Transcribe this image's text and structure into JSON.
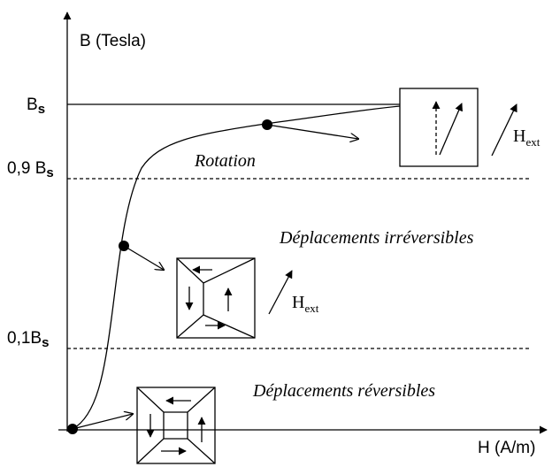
{
  "axes": {
    "y_label": "B (Tesla)",
    "x_label": "H (A/m)"
  },
  "levels": [
    {
      "label": "B",
      "sub": "s"
    },
    {
      "label": "0,9 B",
      "sub": "s"
    },
    {
      "label": "0,1B",
      "sub": "s"
    }
  ],
  "regions": {
    "rotation": "Rotation",
    "irreversible": "Déplacements irréversibles",
    "reversible": "Déplacements réversibles"
  },
  "field_labels": [
    {
      "label": "H",
      "sub": "ext"
    },
    {
      "label": "H",
      "sub": "ext"
    }
  ]
}
